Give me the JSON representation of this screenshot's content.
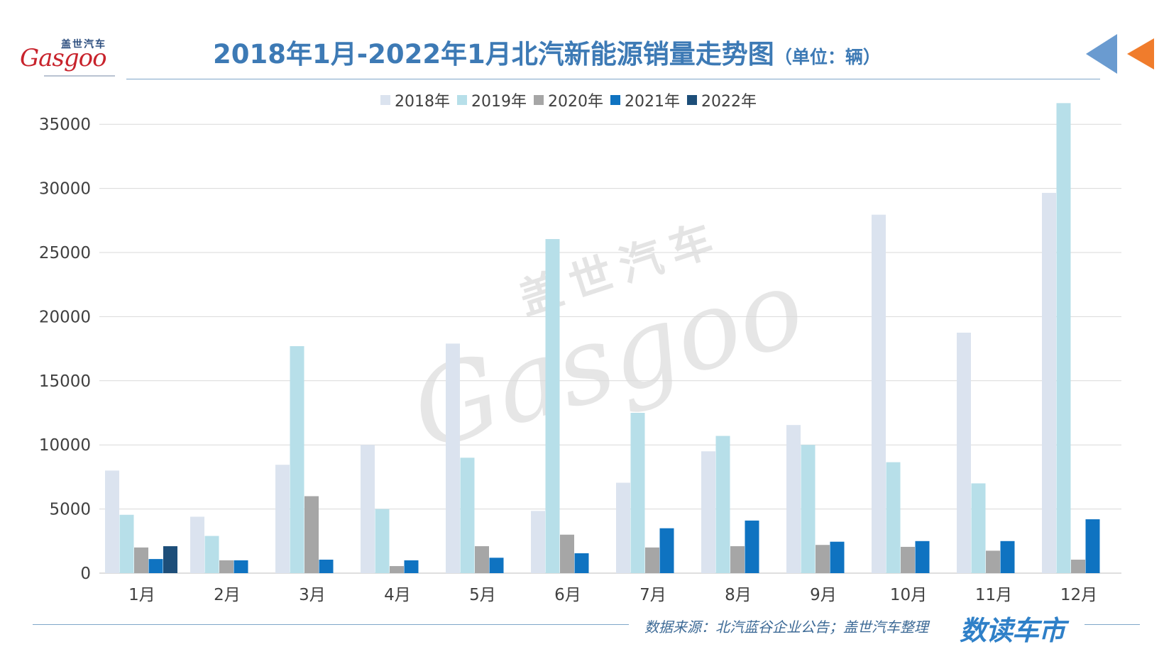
{
  "logo": {
    "cn": "盖世汽车",
    "en": "Gasgoo"
  },
  "title": {
    "main": "2018年1月-2022年1月北汽新能源销量走势图",
    "unit": "（单位：辆）"
  },
  "watermark": {
    "cn": "盖世汽车",
    "en": "Gasgoo"
  },
  "colors": {
    "2018": "#dbe3ef",
    "2019": "#b7dfe9",
    "2020": "#a6a6a6",
    "2021": "#0f73c1",
    "2022": "#1d4e79",
    "title": "#3d7ab5",
    "arrow_orange": "#f07c2c",
    "arrow_blue": "#6a9bd0"
  },
  "chart_data": {
    "type": "bar",
    "title": "2018年1月-2022年1月北汽新能源销量走势图（单位：辆）",
    "categories": [
      "1月",
      "2月",
      "3月",
      "4月",
      "5月",
      "6月",
      "7月",
      "8月",
      "9月",
      "10月",
      "11月",
      "12月"
    ],
    "series": [
      {
        "name": "2018年",
        "values": [
          8000,
          4400,
          8450,
          10000,
          17900,
          4850,
          7050,
          9500,
          11550,
          27950,
          18750,
          29650
        ]
      },
      {
        "name": "2019年",
        "values": [
          4550,
          2900,
          17700,
          5000,
          9000,
          26050,
          12500,
          10700,
          10000,
          8650,
          7000,
          36650
        ]
      },
      {
        "name": "2020年",
        "values": [
          2000,
          1000,
          6000,
          550,
          2100,
          3000,
          2000,
          2100,
          2200,
          2050,
          1750,
          1050
        ]
      },
      {
        "name": "2021年",
        "values": [
          1100,
          1000,
          1050,
          1000,
          1200,
          1550,
          3500,
          4100,
          2450,
          2500,
          2500,
          4200
        ]
      },
      {
        "name": "2022年",
        "values": [
          2100,
          null,
          null,
          null,
          null,
          null,
          null,
          null,
          null,
          null,
          null,
          null
        ]
      }
    ],
    "yticks": [
      0,
      5000,
      10000,
      15000,
      20000,
      25000,
      30000,
      35000
    ],
    "ylim": [
      0,
      36650
    ],
    "grid": true,
    "legend": "top-center"
  },
  "footer": {
    "source": "数据来源：北汽蓝谷企业公告；盖世汽车整理",
    "brand": "数读车市"
  }
}
